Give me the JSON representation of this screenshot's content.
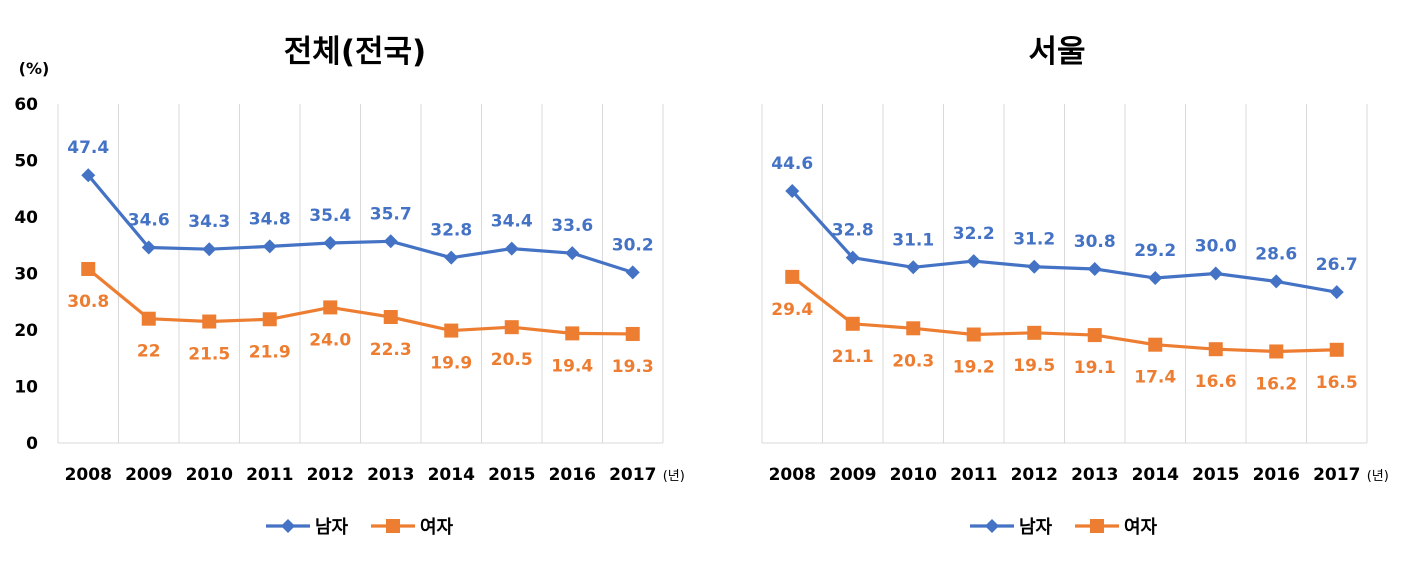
{
  "chart_data": [
    {
      "type": "line",
      "title": "전체(전국)",
      "ylabel": "(%)",
      "x_unit": "(년)",
      "categories": [
        "2008",
        "2009",
        "2010",
        "2011",
        "2012",
        "2013",
        "2014",
        "2015",
        "2016",
        "2017"
      ],
      "ylim": [
        0,
        60
      ],
      "yticks": [
        0,
        10,
        20,
        30,
        40,
        50,
        60
      ],
      "grid": "vertical",
      "legend": "bottom",
      "series": [
        {
          "name": "남자",
          "color": "#4472C4",
          "marker": "diamond",
          "values": [
            47.4,
            34.6,
            34.3,
            34.8,
            35.4,
            35.7,
            32.8,
            34.4,
            33.6,
            30.2
          ],
          "labels": [
            "47.4",
            "34.6",
            "34.3",
            "34.8",
            "35.4",
            "35.7",
            "32.8",
            "34.4",
            "33.6",
            "30.2"
          ]
        },
        {
          "name": "여자",
          "color": "#ED7D31",
          "marker": "square",
          "values": [
            30.8,
            22,
            21.5,
            21.9,
            24.0,
            22.3,
            19.9,
            20.5,
            19.4,
            19.3
          ],
          "labels": [
            "30.8",
            "22",
            "21.5",
            "21.9",
            "24.0",
            "22.3",
            "19.9",
            "20.5",
            "19.4",
            "19.3"
          ]
        }
      ]
    },
    {
      "type": "line",
      "title": "서울",
      "x_unit": "(년)",
      "categories": [
        "2008",
        "2009",
        "2010",
        "2011",
        "2012",
        "2013",
        "2014",
        "2015",
        "2016",
        "2017"
      ],
      "ylim": [
        0,
        60
      ],
      "grid": "vertical",
      "legend": "bottom",
      "series": [
        {
          "name": "남자",
          "color": "#4472C4",
          "marker": "diamond",
          "values": [
            44.6,
            32.8,
            31.1,
            32.2,
            31.2,
            30.8,
            29.2,
            30.0,
            28.6,
            26.7
          ],
          "labels": [
            "44.6",
            "32.8",
            "31.1",
            "32.2",
            "31.2",
            "30.8",
            "29.2",
            "30.0",
            "28.6",
            "26.7"
          ]
        },
        {
          "name": "여자",
          "color": "#ED7D31",
          "marker": "square",
          "values": [
            29.4,
            21.1,
            20.3,
            19.2,
            19.5,
            19.1,
            17.4,
            16.6,
            16.2,
            16.5
          ],
          "labels": [
            "29.4",
            "21.1",
            "20.3",
            "19.2",
            "19.5",
            "19.1",
            "17.4",
            "16.6",
            "16.2",
            "16.5"
          ]
        }
      ]
    }
  ]
}
